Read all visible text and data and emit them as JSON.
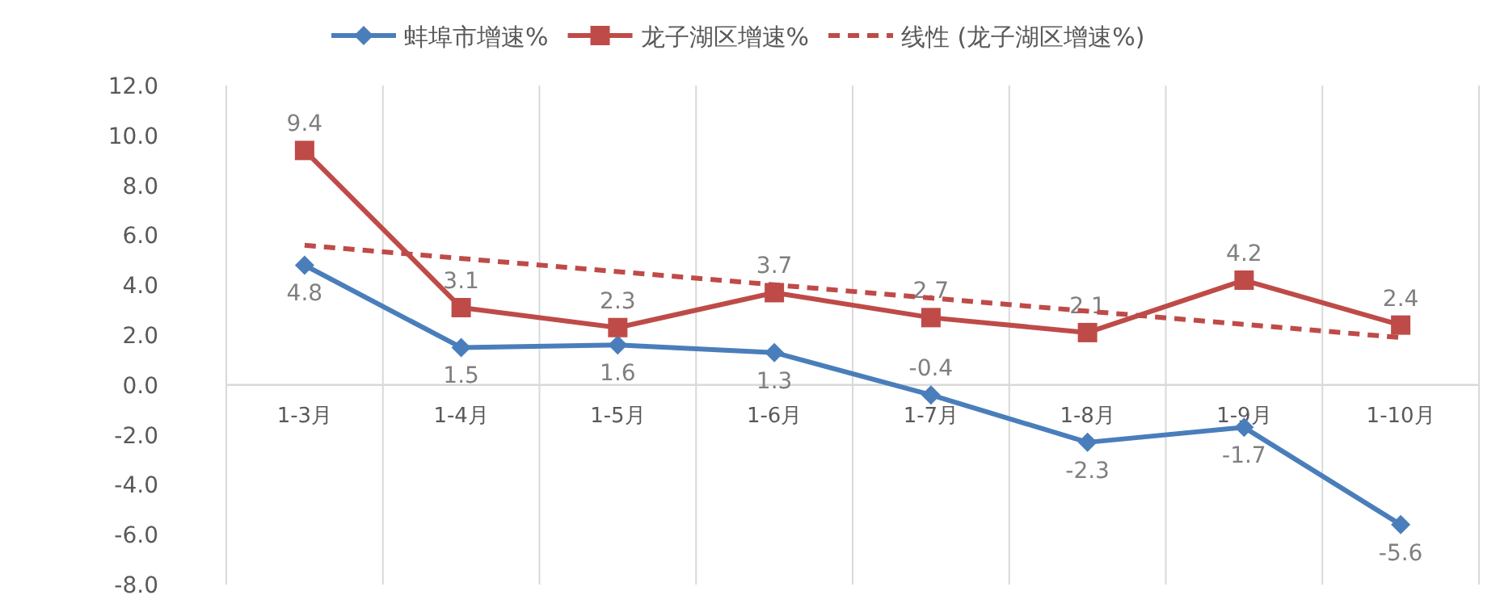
{
  "chart_data": {
    "type": "line",
    "categories": [
      "1-3月",
      "1-4月",
      "1-5月",
      "1-6月",
      "1-7月",
      "1-8月",
      "1-9月",
      "1-10月"
    ],
    "series": [
      {
        "name": "蚌埠市增速%",
        "color": "#4a7ebb",
        "marker": "diamond",
        "data_labels": true,
        "values": [
          4.8,
          1.5,
          1.6,
          1.3,
          -0.4,
          -2.3,
          -1.7,
          -5.6
        ]
      },
      {
        "name": "龙子湖区增速%",
        "color": "#be4b48",
        "marker": "square",
        "data_labels": true,
        "values": [
          9.4,
          3.1,
          2.3,
          3.7,
          2.7,
          2.1,
          4.2,
          2.4
        ]
      },
      {
        "name": "线性 (龙子湖区增速%)",
        "color": "#be4b48",
        "line_style": "dashed",
        "marker": "none",
        "x": [
          "1-3月",
          "1-10月"
        ],
        "values": [
          5.6,
          1.9
        ]
      }
    ],
    "ylim": [
      -8,
      12
    ],
    "yticks": [
      {
        "value": -8,
        "label": "-8.0"
      },
      {
        "value": -6,
        "label": "-6.0"
      },
      {
        "value": -4,
        "label": "-4.0"
      },
      {
        "value": -2,
        "label": "-2.0"
      },
      {
        "value": 0,
        "label": "0.0"
      },
      {
        "value": 2,
        "label": "2.0"
      },
      {
        "value": 4,
        "label": "4.0"
      },
      {
        "value": 6,
        "label": "6.0"
      },
      {
        "value": 8,
        "label": "8.0"
      },
      {
        "value": 10,
        "label": "10.0"
      },
      {
        "value": 12,
        "label": "12.0"
      }
    ],
    "grid": "x",
    "legend": "top"
  }
}
